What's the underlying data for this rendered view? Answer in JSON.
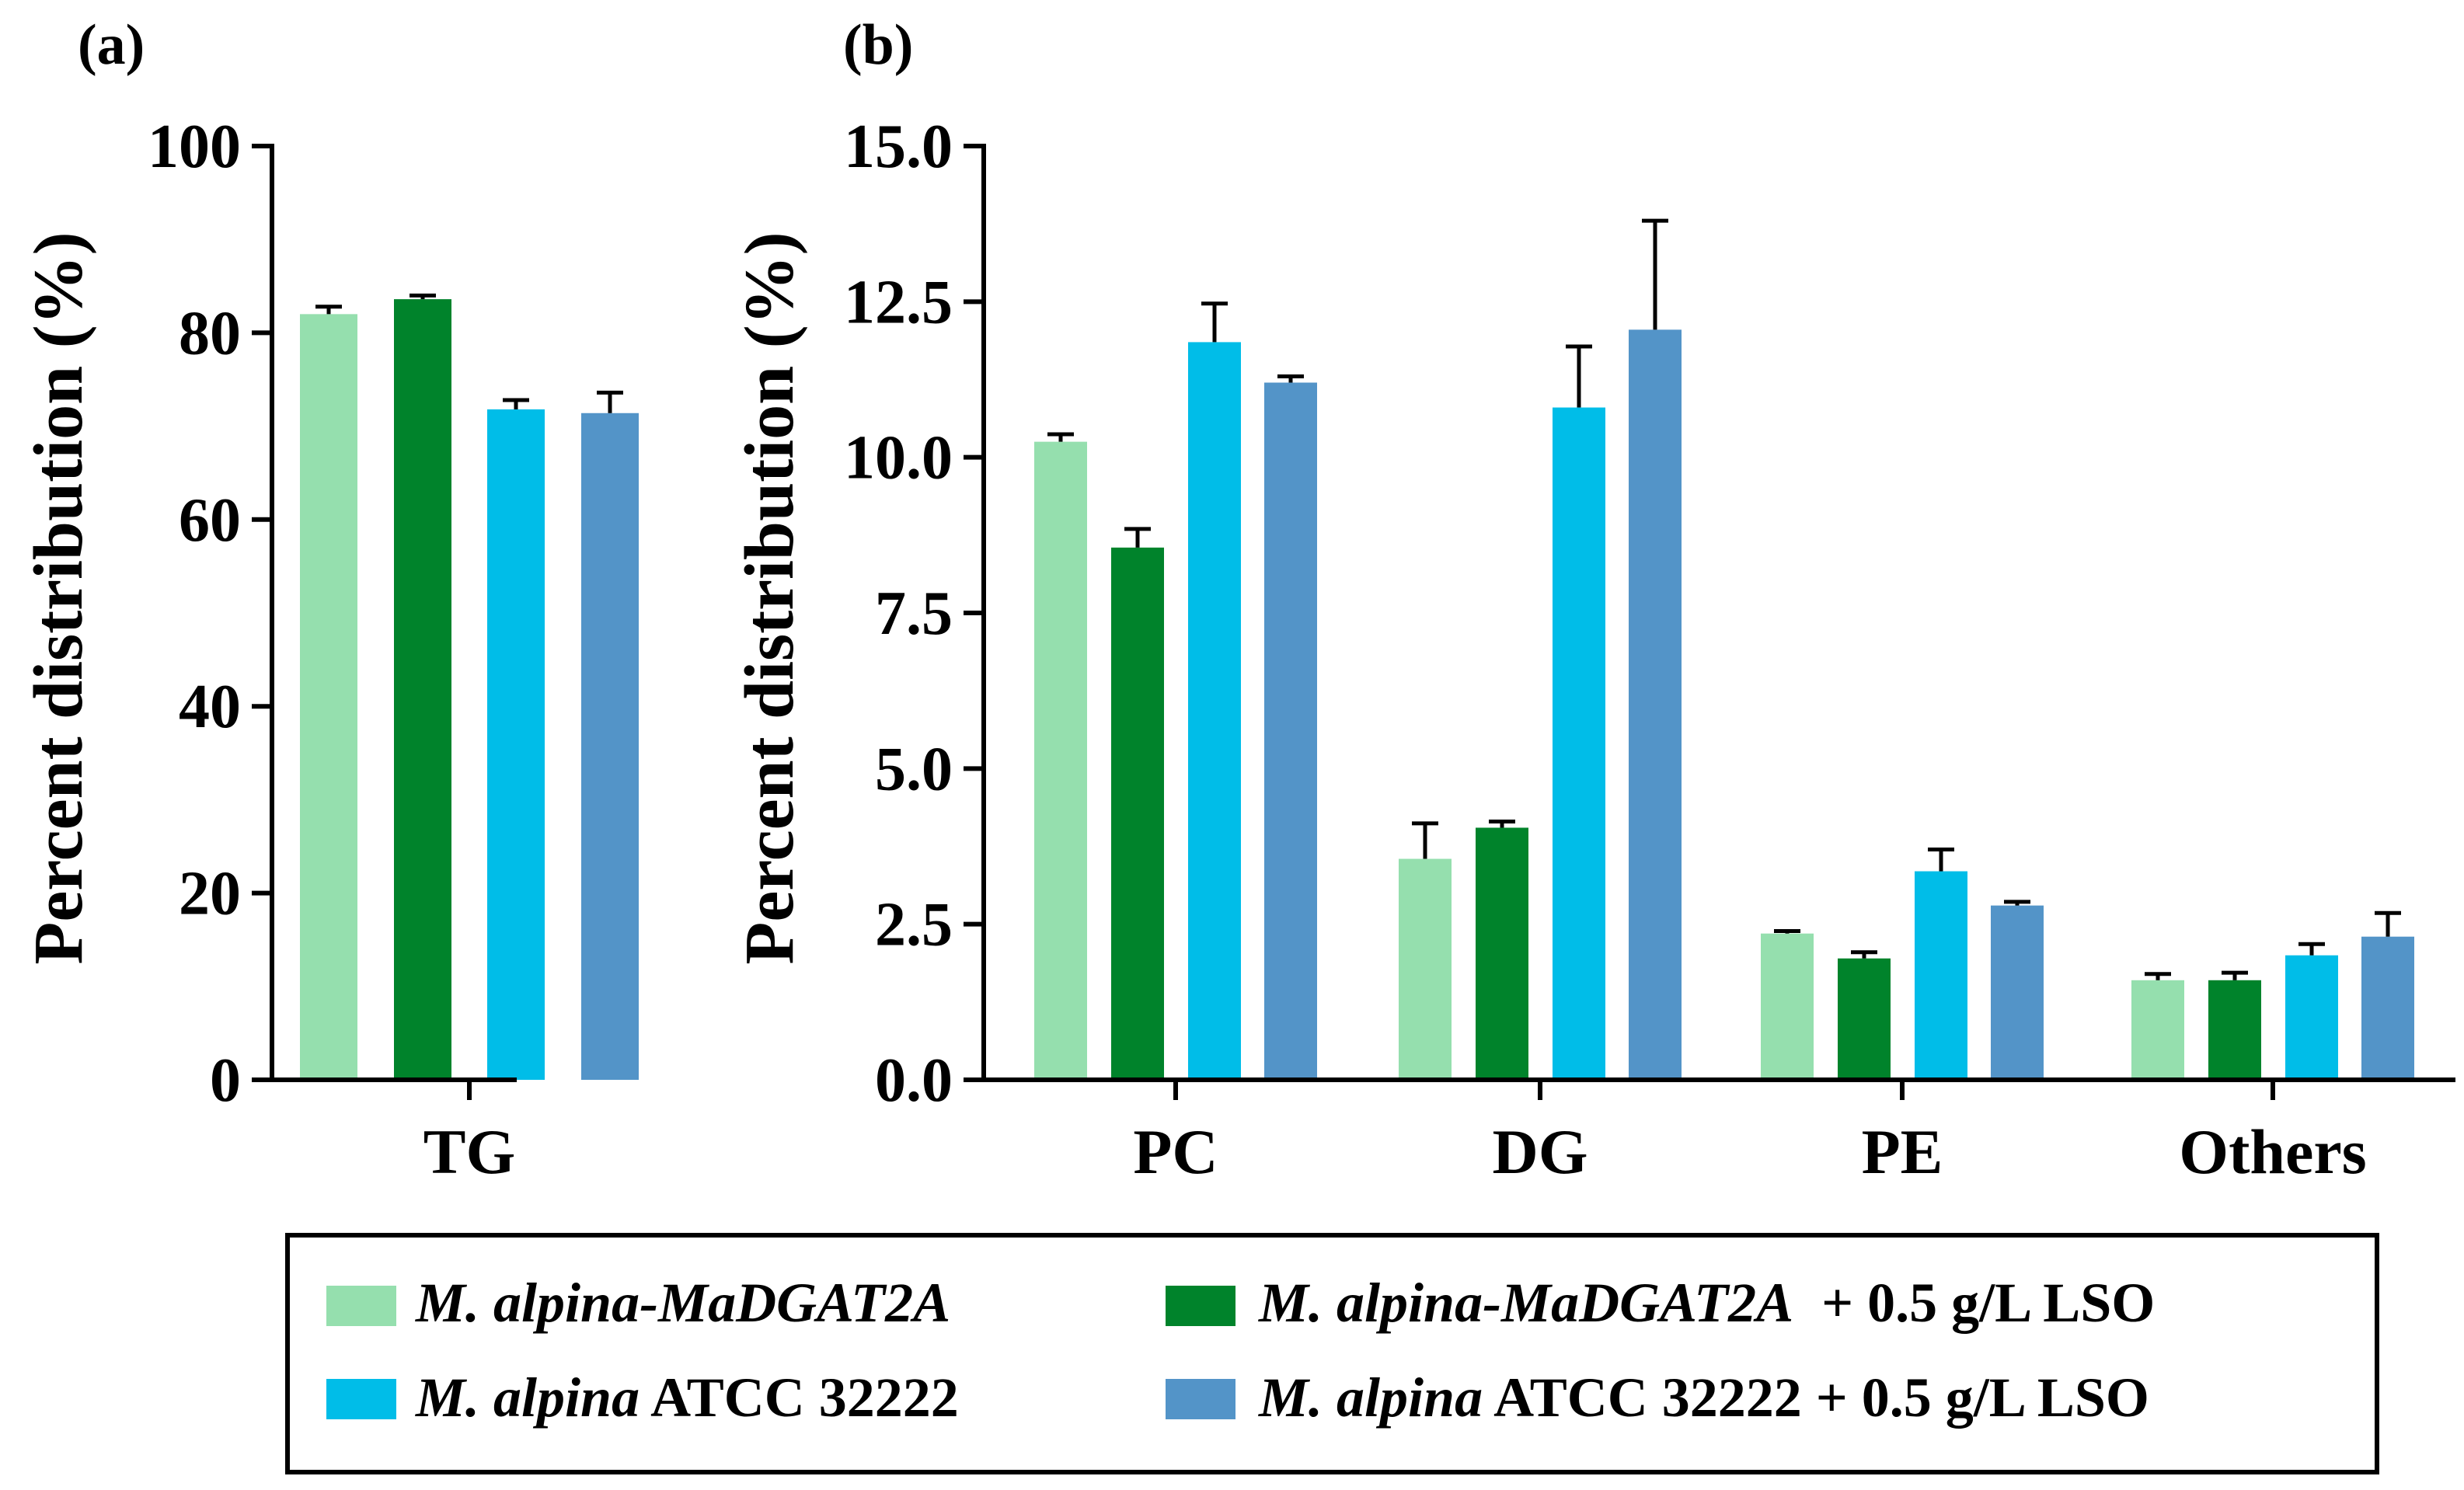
{
  "chart_data": [
    {
      "panel_label": "(a)",
      "type": "bar",
      "ylabel": "Percent distribution (%)",
      "ylim": [
        0,
        100
      ],
      "yticks": [
        "0",
        "20",
        "40",
        "60",
        "80",
        "100"
      ],
      "ytick_values": [
        0,
        20,
        40,
        60,
        80,
        100
      ],
      "categories": [
        "TG"
      ],
      "series": [
        {
          "name": "M. alpina-MaDGAT2A",
          "values": [
            82.0
          ],
          "errors": [
            0.8
          ]
        },
        {
          "name": "M. alpina-MaDGAT2A + 0.5 g/L LSO",
          "values": [
            83.6
          ],
          "errors": [
            0.4
          ]
        },
        {
          "name": "M. alpina ATCC 32222",
          "values": [
            71.8
          ],
          "errors": [
            1.0
          ]
        },
        {
          "name": "M. alpina ATCC 32222 + 0.5 g/L LSO",
          "values": [
            71.4
          ],
          "errors": [
            2.2
          ]
        }
      ]
    },
    {
      "panel_label": "(b)",
      "type": "bar",
      "ylabel": "Percent distribution (%)",
      "ylim": [
        0,
        15
      ],
      "yticks": [
        "0.0",
        "2.5",
        "5.0",
        "7.5",
        "10.0",
        "12.5",
        "15.0"
      ],
      "ytick_values": [
        0,
        2.5,
        5,
        7.5,
        10,
        12.5,
        15
      ],
      "categories": [
        "PC",
        "DG",
        "PE",
        "Others"
      ],
      "series": [
        {
          "name": "M. alpina-MaDGAT2A",
          "values": [
            10.25,
            3.55,
            2.35,
            1.6
          ],
          "errors": [
            0.12,
            0.57,
            0.04,
            0.1
          ]
        },
        {
          "name": "M. alpina-MaDGAT2A + 0.5 g/L LSO",
          "values": [
            8.55,
            4.05,
            1.95,
            1.6
          ],
          "errors": [
            0.3,
            0.1,
            0.1,
            0.12
          ]
        },
        {
          "name": "M. alpina ATCC 32222",
          "values": [
            11.85,
            10.8,
            3.35,
            2.0
          ],
          "errors": [
            0.62,
            0.98,
            0.35,
            0.18
          ]
        },
        {
          "name": "M. alpina ATCC 32222 + 0.5 g/L LSO",
          "values": [
            11.2,
            12.05,
            2.8,
            2.3
          ],
          "errors": [
            0.1,
            1.75,
            0.06,
            0.38
          ]
        }
      ]
    }
  ],
  "series_colors": [
    "#95dfae",
    "#00832b",
    "#00bde8",
    "#5394c8"
  ],
  "legend": {
    "items": [
      {
        "italic": "M. alpina-MaDGAT2A",
        "plain": ""
      },
      {
        "italic": "M. alpina-MaDGAT2A",
        "plain": "  + 0.5 g/L LSO"
      },
      {
        "italic": "M. alpina",
        "plain": " ATCC 32222"
      },
      {
        "italic": "M. alpina",
        "plain": " ATCC 32222 + 0.5 g/L LSO"
      }
    ]
  }
}
